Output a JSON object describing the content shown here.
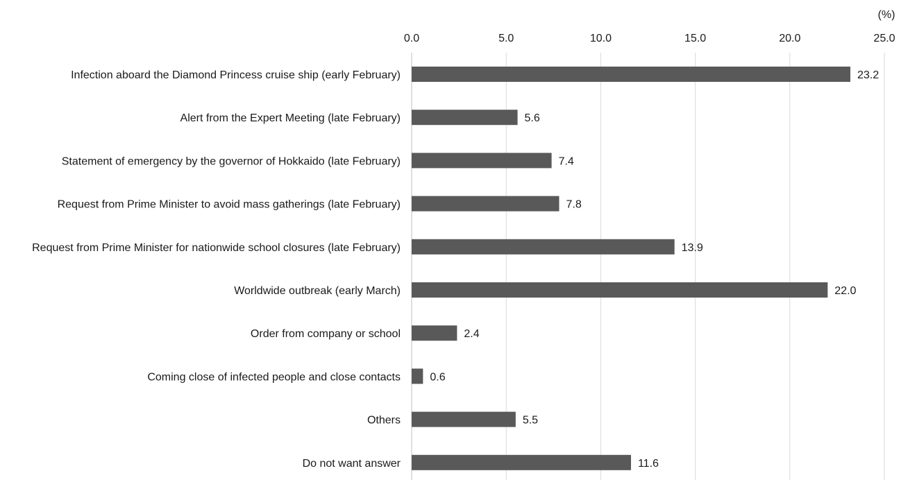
{
  "chart_data": {
    "type": "bar",
    "orientation": "horizontal",
    "unit": "(%)",
    "xlim": [
      0,
      25
    ],
    "ticks": [
      "0.0",
      "5.0",
      "10.0",
      "15.0",
      "20.0",
      "25.0"
    ],
    "tick_values": [
      0,
      5,
      10,
      15,
      20,
      25
    ],
    "grid": true,
    "bar_color": "#595959",
    "categories": [
      "Infection aboard the Diamond Princess cruise ship (early February)",
      "Alert from the Expert Meeting (late February)",
      "Statement of emergency by the governor of Hokkaido (late February)",
      "Request from Prime Minister to avoid mass gatherings (late February)",
      "Request from Prime Minister for nationwide school closures (late February)",
      "Worldwide outbreak (early March)",
      "Order from company or school",
      "Coming close of infected people and close contacts",
      "Others",
      "Do not want answer"
    ],
    "values": [
      23.2,
      5.6,
      7.4,
      7.8,
      13.9,
      22.0,
      2.4,
      0.6,
      5.5,
      11.6
    ],
    "value_labels": [
      "23.2",
      "5.6",
      "7.4",
      "7.8",
      "13.9",
      "22.0",
      "2.4",
      "0.6",
      "5.5",
      "11.6"
    ]
  }
}
